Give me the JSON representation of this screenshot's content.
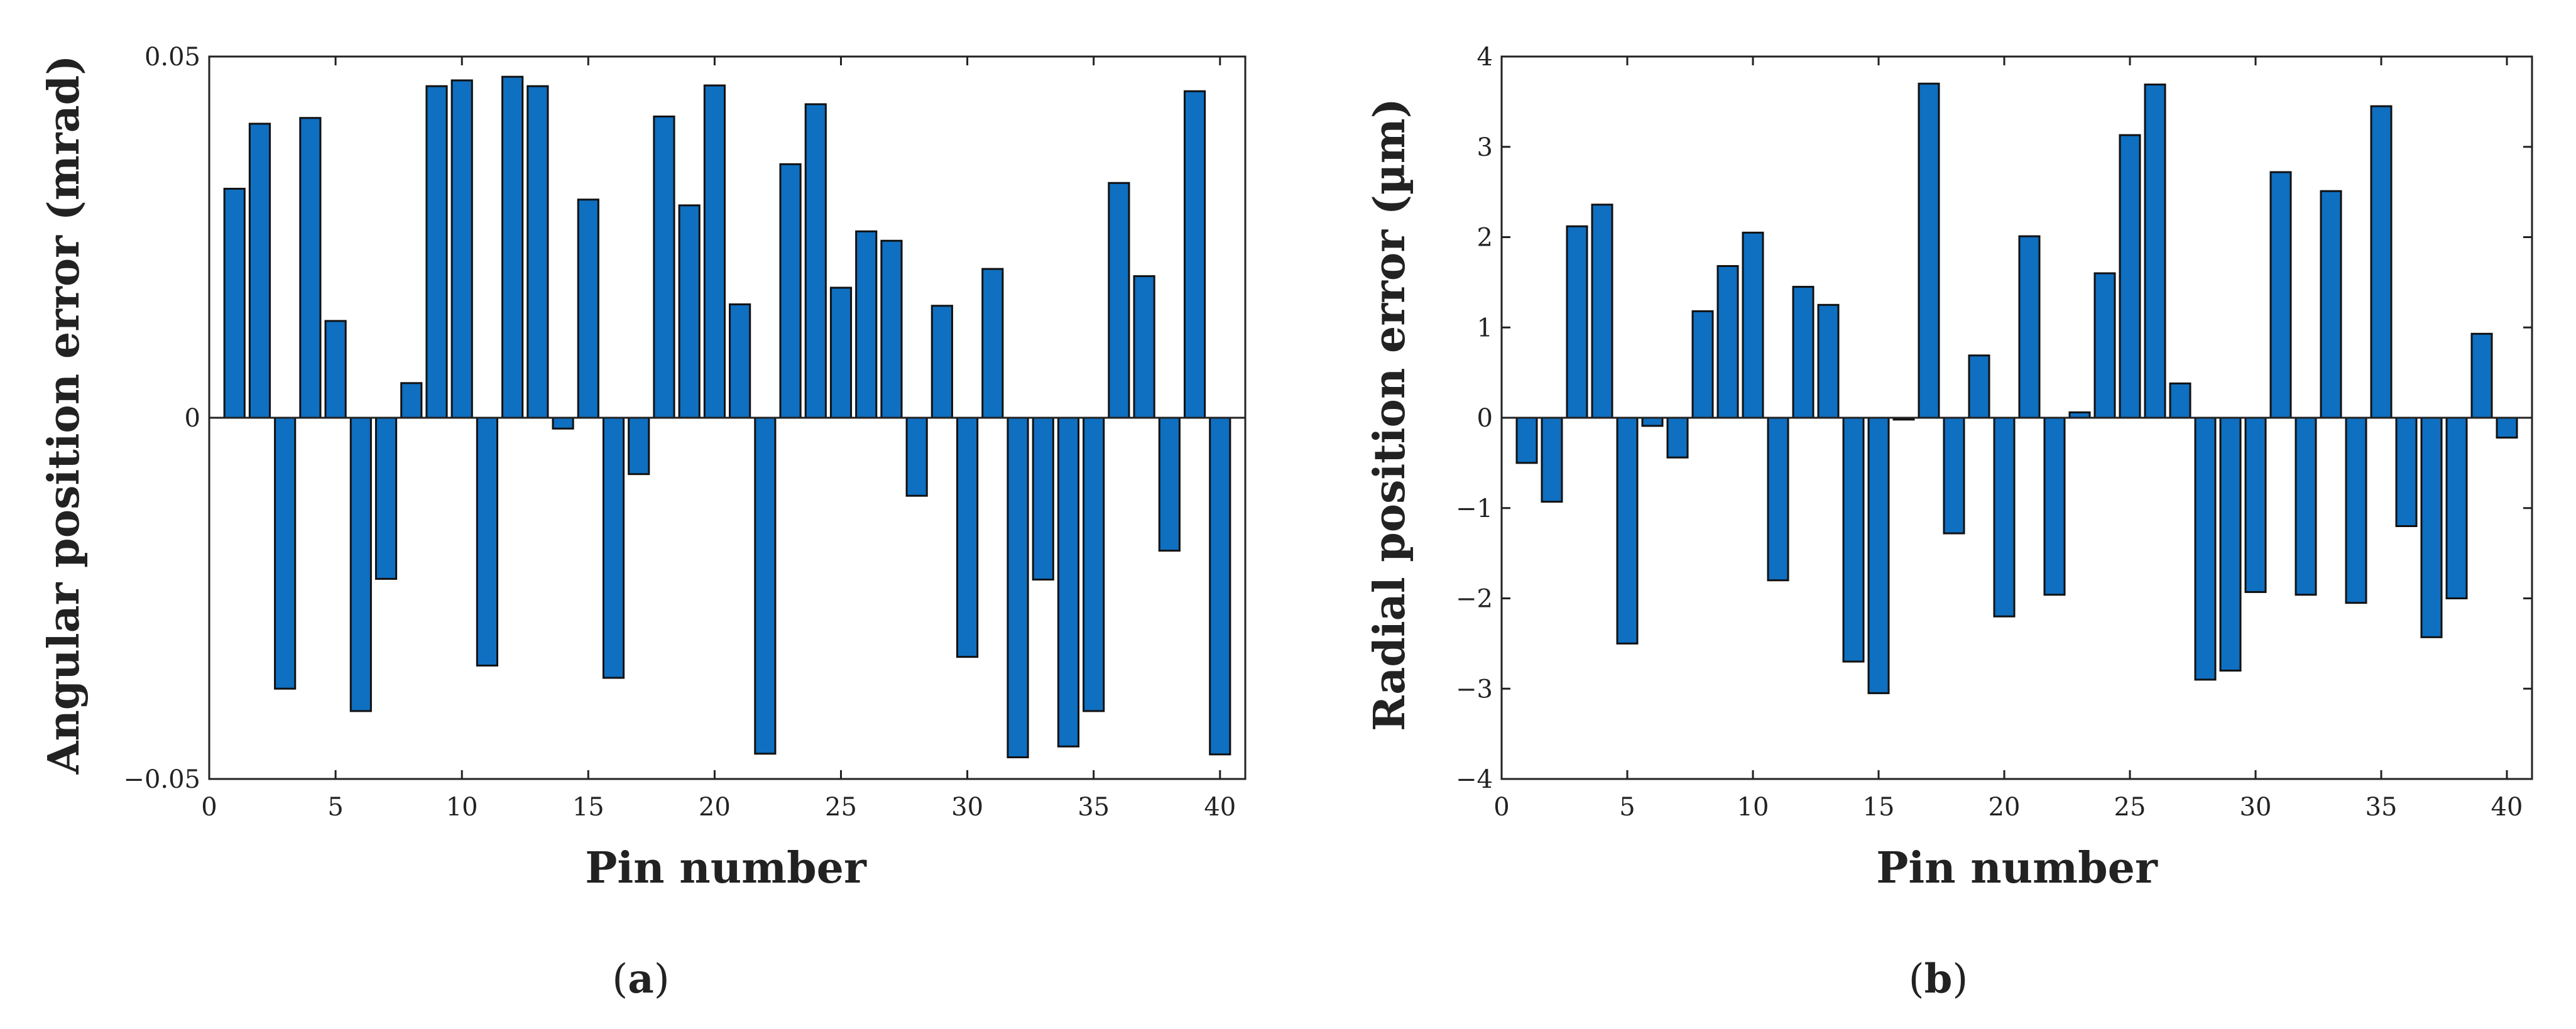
{
  "colors": {
    "bar_fill": "#0f6fc0",
    "bar_edge": "#111111",
    "axis": "#222222"
  },
  "chart_data": [
    {
      "type": "bar",
      "panel_label": "a",
      "xlabel": "Pin number",
      "ylabel": "Angular position error (mrad)",
      "xlim": [
        0,
        41
      ],
      "ylim": [
        -0.05,
        0.05
      ],
      "xticks": [
        0,
        5,
        10,
        15,
        20,
        25,
        30,
        35,
        40
      ],
      "xtick_labels": [
        "0",
        "5",
        "10",
        "15",
        "20",
        "25",
        "30",
        "35",
        "40"
      ],
      "yticks": [
        -0.05,
        0,
        0.05
      ],
      "ytick_labels": [
        "−0.05",
        "0",
        "0.05"
      ],
      "x": [
        1,
        2,
        3,
        4,
        5,
        6,
        7,
        8,
        9,
        10,
        11,
        12,
        13,
        14,
        15,
        16,
        17,
        18,
        19,
        20,
        21,
        22,
        23,
        24,
        25,
        26,
        27,
        28,
        29,
        30,
        31,
        32,
        33,
        34,
        35,
        36,
        37,
        38,
        39,
        40
      ],
      "values": [
        0.0317,
        0.0407,
        -0.0375,
        0.0415,
        0.0134,
        -0.0406,
        -0.0223,
        0.0048,
        0.0459,
        0.0467,
        -0.0343,
        0.0472,
        0.0459,
        -0.0015,
        0.0302,
        -0.036,
        -0.0078,
        0.0417,
        0.0294,
        0.046,
        0.0157,
        -0.0465,
        0.0351,
        0.0434,
        0.018,
        0.0258,
        0.0245,
        -0.0108,
        0.0155,
        -0.0331,
        0.0206,
        -0.047,
        -0.0224,
        -0.0455,
        -0.0406,
        0.0325,
        0.0196,
        -0.0184,
        0.0452,
        -0.0466
      ]
    },
    {
      "type": "bar",
      "panel_label": "b",
      "xlabel": "Pin number",
      "ylabel": "Radial position error (µm)",
      "xlim": [
        0,
        41
      ],
      "ylim": [
        -4,
        4
      ],
      "xticks": [
        0,
        5,
        10,
        15,
        20,
        25,
        30,
        35,
        40
      ],
      "xtick_labels": [
        "0",
        "5",
        "10",
        "15",
        "20",
        "25",
        "30",
        "35",
        "40"
      ],
      "yticks": [
        -4,
        -3,
        -2,
        -1,
        0,
        1,
        2,
        3,
        4
      ],
      "ytick_labels": [
        "−4",
        "−3",
        "−2",
        "−1",
        "0",
        "1",
        "2",
        "3",
        "4"
      ],
      "x": [
        1,
        2,
        3,
        4,
        5,
        6,
        7,
        8,
        9,
        10,
        11,
        12,
        13,
        14,
        15,
        16,
        17,
        18,
        19,
        20,
        21,
        22,
        23,
        24,
        25,
        26,
        27,
        28,
        29,
        30,
        31,
        32,
        33,
        34,
        35,
        36,
        37,
        38,
        39,
        40
      ],
      "values": [
        -0.5,
        -0.93,
        2.12,
        2.36,
        -2.5,
        -0.09,
        -0.44,
        1.18,
        1.68,
        2.05,
        -1.8,
        1.45,
        1.25,
        -2.7,
        -3.05,
        -0.02,
        3.7,
        -1.28,
        0.69,
        -2.2,
        2.01,
        -1.96,
        0.06,
        1.6,
        3.13,
        3.69,
        0.38,
        -2.9,
        -2.8,
        -1.93,
        2.72,
        -1.96,
        2.51,
        -2.05,
        3.45,
        -1.2,
        -2.43,
        -2.0,
        0.93,
        -0.22
      ]
    }
  ]
}
